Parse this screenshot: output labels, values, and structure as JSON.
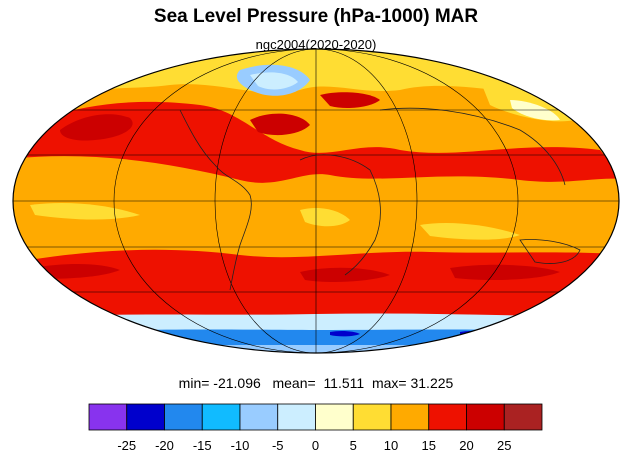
{
  "header": {
    "title": "Sea Level Pressure (hPa-1000) MAR",
    "subtitle": "ngc2004(2020-2020)"
  },
  "stats": {
    "min_label": "min=",
    "min": "-21.096",
    "mean_label": "mean=",
    "mean": "11.511",
    "max_label": "max=",
    "max": "31.225"
  },
  "colorbar": {
    "colors": [
      "#8833ee",
      "#0000cc",
      "#2288ee",
      "#11bbff",
      "#99ccff",
      "#cceeff",
      "#ffffcc",
      "#ffdd33",
      "#ffaa00",
      "#ee1100",
      "#cc0000",
      "#aa2222"
    ],
    "tick_labels": [
      "-25",
      "-20",
      "-15",
      "-10",
      "-5",
      "0",
      "5",
      "10",
      "15",
      "20",
      "25"
    ]
  },
  "map": {
    "projection": "mollweide",
    "graticule": true
  }
}
